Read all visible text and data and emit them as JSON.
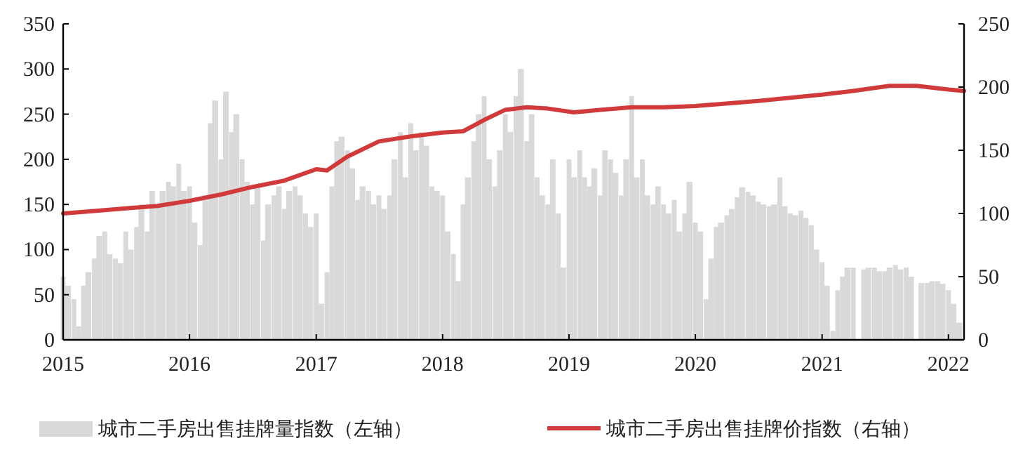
{
  "chart_data": {
    "type": "bar",
    "xlim": [
      "2015-01-01",
      "2022-02-15"
    ],
    "xticks": [
      "2015",
      "2016",
      "2017",
      "2018",
      "2019",
      "2020",
      "2021",
      "2022"
    ],
    "ylim": [
      0,
      350
    ],
    "yticks": [
      0,
      50,
      100,
      150,
      200,
      250,
      300,
      350
    ],
    "y2lim": [
      0,
      250
    ],
    "y2ticks": [
      0,
      50,
      100,
      150,
      200,
      250
    ],
    "grid": false,
    "legend": "bottom",
    "series": [
      {
        "name": "城市二手房出售挂牌量指数（左轴）",
        "color": "#d9d9d9",
        "x": [
          "2015-01-01",
          "2015-01-15",
          "2015-02-01",
          "2015-02-15",
          "2015-03-01",
          "2015-03-15",
          "2015-04-01",
          "2015-04-15",
          "2015-05-01",
          "2015-05-15",
          "2015-06-01",
          "2015-06-15",
          "2015-07-01",
          "2015-07-15",
          "2015-08-01",
          "2015-08-15",
          "2015-09-01",
          "2015-09-15",
          "2015-10-01",
          "2015-10-15",
          "2015-11-01",
          "2015-11-15",
          "2015-12-01",
          "2015-12-15",
          "2016-01-01",
          "2016-01-15",
          "2016-02-01",
          "2016-02-15",
          "2016-03-01",
          "2016-03-15",
          "2016-04-01",
          "2016-04-15",
          "2016-05-01",
          "2016-05-15",
          "2016-06-01",
          "2016-06-15",
          "2016-07-01",
          "2016-07-15",
          "2016-08-01",
          "2016-08-15",
          "2016-09-01",
          "2016-09-15",
          "2016-10-01",
          "2016-10-15",
          "2016-11-01",
          "2016-11-15",
          "2016-12-01",
          "2016-12-15",
          "2017-01-01",
          "2017-01-15",
          "2017-02-01",
          "2017-02-15",
          "2017-03-01",
          "2017-03-15",
          "2017-04-01",
          "2017-04-15",
          "2017-05-01",
          "2017-05-15",
          "2017-06-01",
          "2017-06-15",
          "2017-07-01",
          "2017-07-15",
          "2017-08-01",
          "2017-08-15",
          "2017-09-01",
          "2017-09-15",
          "2017-10-01",
          "2017-10-15",
          "2017-11-01",
          "2017-11-15",
          "2017-12-01",
          "2017-12-15",
          "2018-01-01",
          "2018-01-15",
          "2018-02-01",
          "2018-02-15",
          "2018-03-01",
          "2018-03-15",
          "2018-04-01",
          "2018-04-15",
          "2018-05-01",
          "2018-05-15",
          "2018-06-01",
          "2018-06-15",
          "2018-07-01",
          "2018-07-15",
          "2018-08-01",
          "2018-08-15",
          "2018-09-01",
          "2018-09-15",
          "2018-10-01",
          "2018-10-15",
          "2018-11-01",
          "2018-11-15",
          "2018-12-01",
          "2018-12-15",
          "2019-01-01",
          "2019-01-15",
          "2019-02-01",
          "2019-02-15",
          "2019-03-01",
          "2019-03-15",
          "2019-04-01",
          "2019-04-15",
          "2019-05-01",
          "2019-05-15",
          "2019-06-01",
          "2019-06-15",
          "2019-07-01",
          "2019-07-15",
          "2019-08-01",
          "2019-08-15",
          "2019-09-01",
          "2019-09-15",
          "2019-10-01",
          "2019-10-15",
          "2019-11-01",
          "2019-11-15",
          "2019-12-01",
          "2019-12-15",
          "2020-01-01",
          "2020-01-15",
          "2020-02-01",
          "2020-02-15",
          "2020-03-01",
          "2020-03-15",
          "2020-04-01",
          "2020-04-15",
          "2020-05-01",
          "2020-05-15",
          "2020-06-01",
          "2020-06-15",
          "2020-07-01",
          "2020-07-15",
          "2020-08-01",
          "2020-08-15",
          "2020-09-01",
          "2020-09-15",
          "2020-10-01",
          "2020-10-15",
          "2020-11-01",
          "2020-11-15",
          "2020-12-01",
          "2020-12-15",
          "2021-01-01",
          "2021-01-15",
          "2021-02-01",
          "2021-02-15",
          "2021-03-01",
          "2021-03-15",
          "2021-04-01",
          "2021-04-15",
          "2021-05-01",
          "2021-05-15",
          "2021-06-01",
          "2021-06-15",
          "2021-07-01",
          "2021-07-15",
          "2021-08-01",
          "2021-08-15",
          "2021-09-01",
          "2021-09-15",
          "2021-10-01",
          "2021-10-15",
          "2021-11-01",
          "2021-11-15",
          "2021-12-01",
          "2021-12-15",
          "2022-01-01",
          "2022-01-15",
          "2022-02-01"
        ],
        "values": [
          70,
          60,
          45,
          15,
          60,
          75,
          90,
          115,
          120,
          95,
          90,
          85,
          120,
          100,
          125,
          150,
          120,
          165,
          150,
          165,
          175,
          170,
          195,
          165,
          170,
          130,
          105,
          160,
          240,
          265,
          200,
          275,
          230,
          250,
          200,
          175,
          150,
          170,
          110,
          150,
          160,
          170,
          145,
          165,
          170,
          160,
          140,
          125,
          140,
          40,
          75,
          170,
          220,
          225,
          210,
          190,
          155,
          170,
          165,
          150,
          160,
          145,
          160,
          200,
          230,
          180,
          240,
          210,
          230,
          215,
          170,
          165,
          160,
          120,
          95,
          65,
          150,
          180,
          220,
          250,
          270,
          200,
          170,
          210,
          250,
          230,
          270,
          300,
          220,
          250,
          180,
          160,
          150,
          200,
          140,
          80,
          200,
          180,
          210,
          180,
          170,
          190,
          160,
          210,
          200,
          185,
          160,
          200,
          270,
          180,
          200,
          160,
          150,
          170,
          150,
          140,
          155,
          120,
          140,
          175,
          130,
          120,
          45,
          90,
          125,
          130,
          138,
          145,
          158,
          169,
          164,
          160,
          153,
          150,
          148,
          150,
          180,
          148,
          140,
          138,
          143,
          135,
          127,
          100,
          86,
          60,
          10,
          55,
          70,
          80,
          80,
          null,
          78,
          80,
          80,
          76,
          76,
          80,
          83,
          78,
          80,
          70,
          null,
          63,
          63,
          65,
          65,
          62,
          55,
          40,
          19
        ]
      },
      {
        "name": "城市二手房出售挂牌价指数（右轴）",
        "type": "line",
        "axis": "y2",
        "color": "#d03a3a",
        "line_style": "solid",
        "x": [
          "2015-01-01",
          "2015-04-01",
          "2015-07-01",
          "2015-10-01",
          "2016-01-01",
          "2016-04-01",
          "2016-07-01",
          "2016-10-01",
          "2017-01-01",
          "2017-02-01",
          "2017-04-01",
          "2017-07-01",
          "2017-10-01",
          "2018-01-01",
          "2018-03-01",
          "2018-05-01",
          "2018-07-01",
          "2018-09-01",
          "2018-11-01",
          "2019-01-15",
          "2019-04-01",
          "2019-07-01",
          "2019-10-01",
          "2020-01-01",
          "2020-07-01",
          "2021-01-01",
          "2021-04-01",
          "2021-07-15",
          "2021-10-01",
          "2022-01-01",
          "2022-02-15"
        ],
        "values": [
          100,
          102,
          104,
          106,
          110,
          115,
          121,
          126,
          135,
          134,
          145,
          157,
          161,
          164,
          165,
          174,
          182,
          184,
          183,
          180,
          182,
          184,
          184,
          185,
          189,
          194,
          197,
          201,
          201,
          198,
          197
        ]
      }
    ]
  }
}
